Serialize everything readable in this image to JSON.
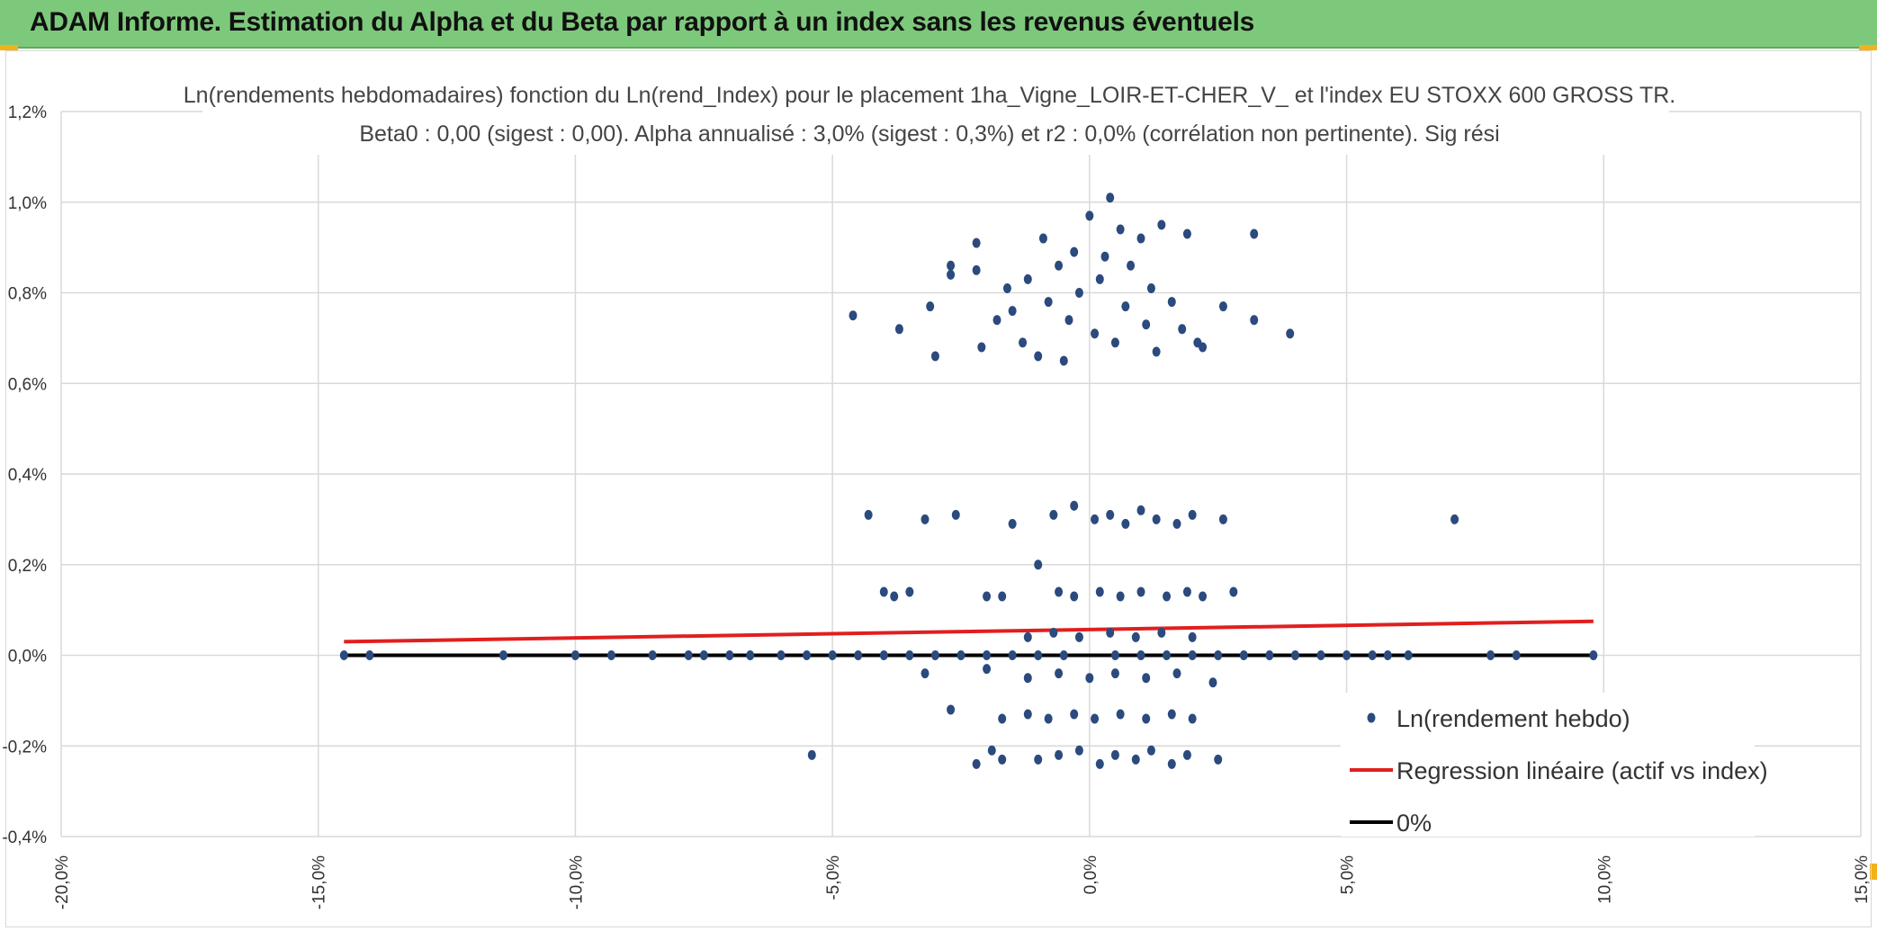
{
  "header": {
    "title": "ADAM Informe. Estimation du Alpha et du Beta par rapport à un index sans les revenus éventuels",
    "background": "#7dc97b",
    "corner_color": "#f2b21b"
  },
  "chart_data": {
    "type": "scatter",
    "title": "Ln(rendements hebdomadaires) fonction du Ln(rend_Index) pour le placement 1ha_Vigne_LOIR-ET-CHER_V_ et l'index EU STOXX 600 GROSS TR.",
    "subtitle": "Beta0 : 0,00 (sigest : 0,00). Alpha annualisé : 3,0% (sigest : 0,3%) et r2 : 0,0% (corrélation non pertinente). Sig rési",
    "xlabel": "",
    "ylabel": "",
    "xlim": [
      -0.2,
      0.15
    ],
    "ylim": [
      -0.004,
      0.012
    ],
    "grid": true,
    "legend_position": "bottom-right",
    "x_tick_labels": [
      "-20,0%",
      "-15,0%",
      "-10,0%",
      "-5,0%",
      "0,0%",
      "5,0%",
      "10,0%",
      "15,0%"
    ],
    "x_tick_values": [
      -0.2,
      -0.15,
      -0.1,
      -0.05,
      0.0,
      0.05,
      0.1,
      0.15
    ],
    "y_tick_labels": [
      "-0,4%",
      "-0,2%",
      "0,0%",
      "0,2%",
      "0,4%",
      "0,6%",
      "0,8%",
      "1,0%",
      "1,2%"
    ],
    "y_tick_values": [
      -0.004,
      -0.002,
      0.0,
      0.002,
      0.004,
      0.006,
      0.008,
      0.01,
      0.012
    ],
    "series": [
      {
        "name": "Ln(rendement hebdo)",
        "kind": "scatter",
        "color": "#2b4a7d",
        "points": [
          [
            -0.145,
            0.0
          ],
          [
            -0.14,
            0.0
          ],
          [
            -0.114,
            0.0
          ],
          [
            -0.1,
            0.0
          ],
          [
            -0.093,
            0.0
          ],
          [
            -0.085,
            0.0
          ],
          [
            -0.078,
            0.0
          ],
          [
            -0.075,
            0.0
          ],
          [
            -0.07,
            0.0
          ],
          [
            -0.066,
            0.0
          ],
          [
            -0.06,
            0.0
          ],
          [
            -0.055,
            0.0
          ],
          [
            -0.05,
            0.0
          ],
          [
            -0.045,
            0.0
          ],
          [
            -0.04,
            0.0
          ],
          [
            -0.035,
            0.0
          ],
          [
            -0.03,
            0.0
          ],
          [
            -0.025,
            0.0
          ],
          [
            -0.02,
            0.0
          ],
          [
            -0.015,
            0.0
          ],
          [
            -0.01,
            0.0
          ],
          [
            -0.005,
            0.0
          ],
          [
            0.005,
            0.0
          ],
          [
            0.01,
            0.0
          ],
          [
            0.015,
            0.0
          ],
          [
            0.02,
            0.0
          ],
          [
            0.025,
            0.0
          ],
          [
            0.03,
            0.0
          ],
          [
            0.035,
            0.0
          ],
          [
            0.04,
            0.0
          ],
          [
            0.045,
            0.0
          ],
          [
            0.05,
            0.0
          ],
          [
            0.055,
            0.0
          ],
          [
            0.058,
            0.0
          ],
          [
            0.062,
            0.0
          ],
          [
            0.078,
            0.0
          ],
          [
            0.083,
            0.0
          ],
          [
            0.098,
            0.0
          ],
          [
            -0.046,
            0.0075
          ],
          [
            -0.037,
            0.0072
          ],
          [
            -0.031,
            0.0077
          ],
          [
            -0.03,
            0.0066
          ],
          [
            -0.027,
            0.0086
          ],
          [
            -0.027,
            0.0084
          ],
          [
            -0.022,
            0.0091
          ],
          [
            -0.022,
            0.0085
          ],
          [
            -0.021,
            0.0068
          ],
          [
            -0.018,
            0.0074
          ],
          [
            -0.016,
            0.0081
          ],
          [
            -0.015,
            0.0076
          ],
          [
            -0.013,
            0.0069
          ],
          [
            -0.012,
            0.0083
          ],
          [
            -0.01,
            0.0066
          ],
          [
            -0.009,
            0.0092
          ],
          [
            -0.008,
            0.0078
          ],
          [
            -0.006,
            0.0086
          ],
          [
            -0.005,
            0.0065
          ],
          [
            -0.004,
            0.0074
          ],
          [
            -0.003,
            0.0089
          ],
          [
            -0.002,
            0.008
          ],
          [
            0.0,
            0.0097
          ],
          [
            0.001,
            0.0071
          ],
          [
            0.002,
            0.0083
          ],
          [
            0.003,
            0.0088
          ],
          [
            0.004,
            0.0101
          ],
          [
            0.005,
            0.0069
          ],
          [
            0.006,
            0.0094
          ],
          [
            0.007,
            0.0077
          ],
          [
            0.008,
            0.0086
          ],
          [
            0.01,
            0.0092
          ],
          [
            0.011,
            0.0073
          ],
          [
            0.012,
            0.0081
          ],
          [
            0.013,
            0.0067
          ],
          [
            0.014,
            0.0095
          ],
          [
            0.016,
            0.0078
          ],
          [
            0.018,
            0.0072
          ],
          [
            0.019,
            0.0093
          ],
          [
            0.021,
            0.0069
          ],
          [
            0.022,
            0.0068
          ],
          [
            0.026,
            0.0077
          ],
          [
            0.032,
            0.0093
          ],
          [
            0.032,
            0.0074
          ],
          [
            0.039,
            0.0071
          ],
          [
            -0.043,
            0.0031
          ],
          [
            -0.032,
            0.003
          ],
          [
            -0.026,
            0.0031
          ],
          [
            -0.015,
            0.0029
          ],
          [
            -0.007,
            0.0031
          ],
          [
            -0.003,
            0.0033
          ],
          [
            0.001,
            0.003
          ],
          [
            0.004,
            0.0031
          ],
          [
            0.007,
            0.0029
          ],
          [
            0.01,
            0.0032
          ],
          [
            0.013,
            0.003
          ],
          [
            0.017,
            0.0029
          ],
          [
            0.02,
            0.0031
          ],
          [
            0.026,
            0.003
          ],
          [
            0.071,
            0.003
          ],
          [
            -0.04,
            0.0014
          ],
          [
            -0.038,
            0.0013
          ],
          [
            -0.035,
            0.0014
          ],
          [
            -0.02,
            0.0013
          ],
          [
            -0.017,
            0.0013
          ],
          [
            -0.01,
            0.002
          ],
          [
            -0.006,
            0.0014
          ],
          [
            -0.003,
            0.0013
          ],
          [
            0.002,
            0.0014
          ],
          [
            0.006,
            0.0013
          ],
          [
            0.01,
            0.0014
          ],
          [
            0.015,
            0.0013
          ],
          [
            0.019,
            0.0014
          ],
          [
            0.022,
            0.0013
          ],
          [
            0.028,
            0.0014
          ],
          [
            -0.012,
            0.0004
          ],
          [
            -0.007,
            0.0005
          ],
          [
            -0.002,
            0.0004
          ],
          [
            0.004,
            0.0005
          ],
          [
            0.009,
            0.0004
          ],
          [
            0.014,
            0.0005
          ],
          [
            0.02,
            0.0004
          ],
          [
            -0.032,
            -0.0004
          ],
          [
            -0.02,
            -0.0003
          ],
          [
            -0.012,
            -0.0005
          ],
          [
            -0.006,
            -0.0004
          ],
          [
            0.0,
            -0.0005
          ],
          [
            0.005,
            -0.0004
          ],
          [
            0.011,
            -0.0005
          ],
          [
            0.017,
            -0.0004
          ],
          [
            0.024,
            -0.0006
          ],
          [
            -0.027,
            -0.0012
          ],
          [
            -0.017,
            -0.0014
          ],
          [
            -0.012,
            -0.0013
          ],
          [
            -0.008,
            -0.0014
          ],
          [
            -0.003,
            -0.0013
          ],
          [
            0.001,
            -0.0014
          ],
          [
            0.006,
            -0.0013
          ],
          [
            0.011,
            -0.0014
          ],
          [
            0.016,
            -0.0013
          ],
          [
            0.02,
            -0.0014
          ],
          [
            -0.054,
            -0.0022
          ],
          [
            -0.022,
            -0.0024
          ],
          [
            -0.019,
            -0.0021
          ],
          [
            -0.017,
            -0.0023
          ],
          [
            -0.01,
            -0.0023
          ],
          [
            -0.006,
            -0.0022
          ],
          [
            -0.002,
            -0.0021
          ],
          [
            0.002,
            -0.0024
          ],
          [
            0.005,
            -0.0022
          ],
          [
            0.009,
            -0.0023
          ],
          [
            0.012,
            -0.0021
          ],
          [
            0.016,
            -0.0024
          ],
          [
            0.019,
            -0.0022
          ],
          [
            0.025,
            -0.0023
          ]
        ]
      },
      {
        "name": "Regression linéaire (actif vs index)",
        "kind": "line",
        "color": "#e01f1f",
        "x": [
          -0.145,
          0.098
        ],
        "y": [
          0.0003,
          0.00075
        ]
      },
      {
        "name": "0%",
        "kind": "line",
        "color": "#000000",
        "x": [
          -0.145,
          0.098
        ],
        "y": [
          0.0,
          0.0
        ]
      }
    ]
  }
}
